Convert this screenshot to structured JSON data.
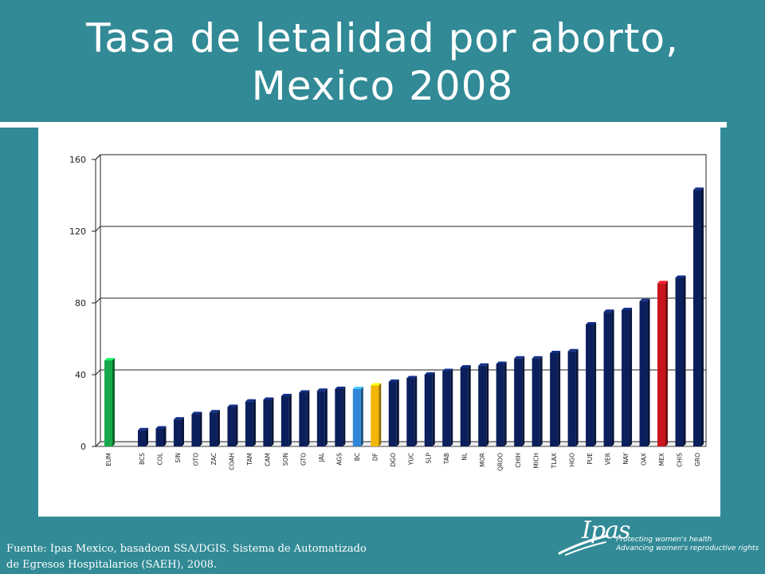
{
  "title_line1": "Tasa de letalidad por aborto,",
  "title_line2": "Mexico 2008",
  "source_line1": "Fuente: Ipas Mexico, basadoon SSA/DGIS. Sistema de Automatizado",
  "source_line2": "de Egresos Hospitalarios (SAEH), 2008.",
  "logo": {
    "word": "Ipas",
    "tagline1": "Protecting women's health",
    "tagline2": "Advancing women's reproductive rights"
  },
  "colors": {
    "background": "#318A96",
    "default_bar": "#0B1F5C",
    "highlight_eum": "#16A84A",
    "highlight_bc": "#2F86D6",
    "highlight_df": "#F2B705",
    "highlight_mex": "#C8141B"
  },
  "chart_data": {
    "type": "bar",
    "title": "",
    "xlabel": "",
    "ylabel": "",
    "ylim": [
      0,
      160
    ],
    "yticks": [
      0,
      40,
      80,
      120,
      160
    ],
    "grid": true,
    "categories": [
      "EUM",
      "BCS",
      "COL",
      "SIN",
      "OTO",
      "ZAC",
      "COAH",
      "TAM",
      "CAM",
      "SON",
      "GTO",
      "JAL",
      "AGS",
      "BC",
      "DF",
      "DGO",
      "YUC",
      "SLP",
      "TAB",
      "NL",
      "MOR",
      "QROO",
      "CHIH",
      "MICH",
      "TLAX",
      "HGO",
      "PUE",
      "VER",
      "NAY",
      "OAX",
      "MEX",
      "CHIS",
      "GRO"
    ],
    "values": [
      48,
      9,
      10,
      15,
      18,
      19,
      22,
      25,
      26,
      28,
      30,
      31,
      32,
      32,
      34,
      36,
      38,
      40,
      42,
      44,
      45,
      46,
      49,
      49,
      52,
      53,
      68,
      75,
      76,
      81,
      91,
      94,
      143
    ],
    "highlight": {
      "EUM": "#16A84A",
      "BC": "#2F86D6",
      "DF": "#F2B705",
      "MEX": "#C8141B"
    }
  }
}
